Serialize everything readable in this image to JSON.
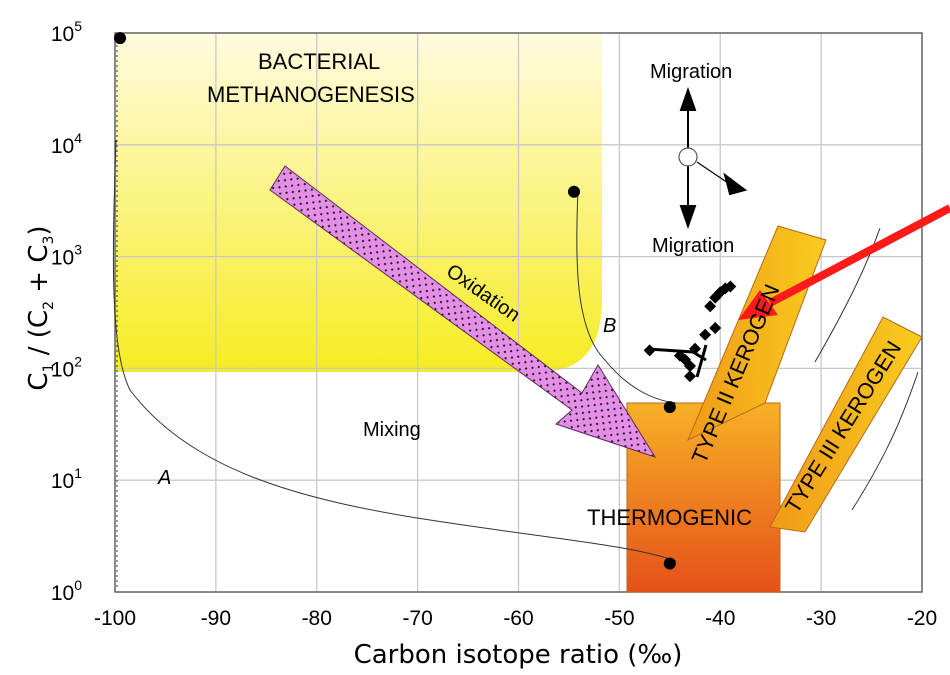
{
  "chart_data": {
    "type": "scatter",
    "title": "",
    "xlabel": "Carbon isotope ratio (‰)",
    "ylabel_parts": {
      "c": "C",
      "s1": "1",
      "mid": " / (C",
      "s2": "2",
      "plus": " + C",
      "s3": "3",
      "end": ")"
    },
    "xlim": [
      -100,
      -20
    ],
    "ylim": [
      1,
      100000
    ],
    "y_scale": "log",
    "grid": true,
    "x_ticks": [
      "-100",
      "-90",
      "-80",
      "-70",
      "-60",
      "-50",
      "-40",
      "-30",
      "-20"
    ],
    "x_tick_values": [
      -100,
      -90,
      -80,
      -70,
      -60,
      -50,
      -40,
      -30,
      -20
    ],
    "y_tick_exponents": [
      "0",
      "1",
      "2",
      "3",
      "4",
      "5"
    ],
    "y_tick_base": "10",
    "colors": {
      "bacterial": "#f6ee2e",
      "thermogenic_top": "#f7b126",
      "thermogenic_bottom": "#e6501a",
      "kerogen": "#f6c21a",
      "oxidation": "#e58ee8",
      "red_arrow": "#ff1a1a",
      "grid": "#cccccc"
    },
    "region_labels": {
      "bacterial_line1": "BACTERIAL",
      "bacterial_line2": "METHANOGENESIS",
      "thermogenic": "THERMOGENIC",
      "type2": "TYPE II KEROGEN",
      "type3": "TYPE III KEROGEN"
    },
    "annotations": {
      "migration_top": "Migration",
      "migration_mid": "Migration",
      "oxidation": "Oxidation",
      "mixing": "Mixing",
      "curve_a": "A",
      "curve_b": "B"
    },
    "endpoints": [
      {
        "x": -99.5,
        "y": 90000
      },
      {
        "x": -54.5,
        "y": 3800
      },
      {
        "x": -45,
        "y": 45
      },
      {
        "x": -45,
        "y": 1.8
      }
    ],
    "samples": [
      {
        "x": -47,
        "y": 145
      },
      {
        "x": -44,
        "y": 130
      },
      {
        "x": -43.5,
        "y": 120
      },
      {
        "x": -43,
        "y": 105
      },
      {
        "x": -42.5,
        "y": 150
      },
      {
        "x": -43,
        "y": 85
      },
      {
        "x": -41.5,
        "y": 200
      },
      {
        "x": -40.5,
        "y": 230
      },
      {
        "x": -41,
        "y": 360
      },
      {
        "x": -40.5,
        "y": 430
      },
      {
        "x": -40,
        "y": 480
      },
      {
        "x": -39.5,
        "y": 520
      },
      {
        "x": -39,
        "y": 540
      }
    ]
  }
}
